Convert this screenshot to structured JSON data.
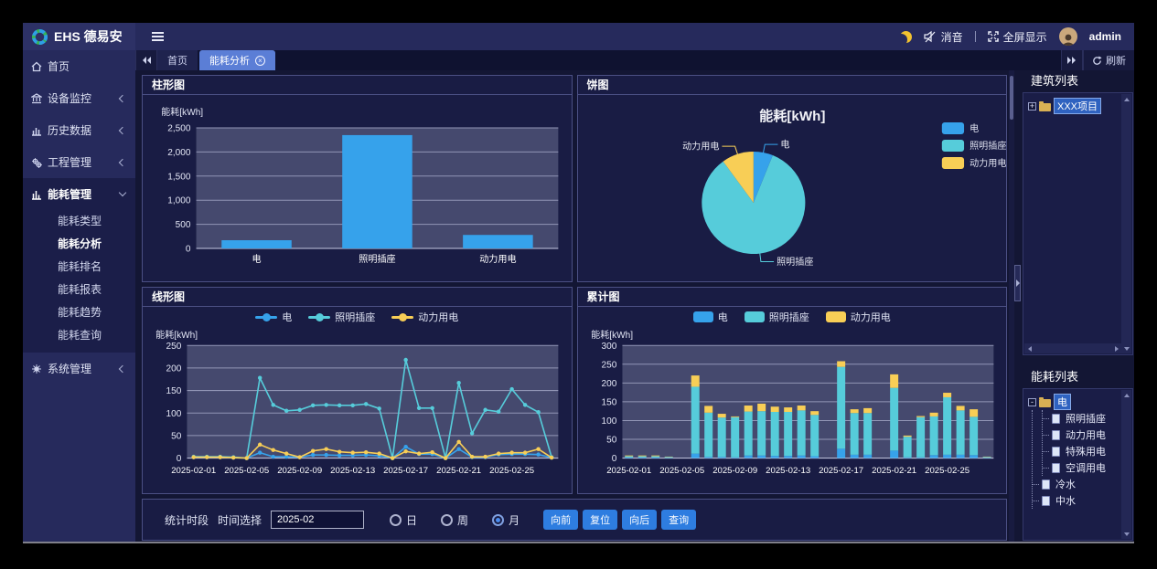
{
  "topbar": {
    "brand": "EHS 德易安",
    "mute_label": "消音",
    "fullscreen_label": "全屏显示",
    "username": "admin"
  },
  "sidebar": {
    "items": [
      {
        "label": "首页",
        "icon": "home-icon",
        "expandable": false
      },
      {
        "label": "设备监控",
        "icon": "device-monitor-icon",
        "expandable": true
      },
      {
        "label": "历史数据",
        "icon": "history-data-icon",
        "expandable": true
      },
      {
        "label": "工程管理",
        "icon": "project-manage-icon",
        "expandable": true
      },
      {
        "label": "能耗管理",
        "icon": "energy-manage-icon",
        "expandable": true,
        "expanded": true
      },
      {
        "label": "系统管理",
        "icon": "system-manage-icon",
        "expandable": true
      }
    ],
    "submenu": [
      "能耗类型",
      "能耗分析",
      "能耗排名",
      "能耗报表",
      "能耗趋势",
      "能耗查询"
    ],
    "active_submenu": "能耗分析"
  },
  "tabs": {
    "items": [
      {
        "label": "首页",
        "active": false
      },
      {
        "label": "能耗分析",
        "active": true,
        "closable": true
      }
    ],
    "refresh_label": "刷新"
  },
  "panels": {
    "bar_title": "柱形图",
    "pie_title": "饼图",
    "line_title": "线形图",
    "stack_title": "累计图"
  },
  "right_panel": {
    "building_title": "建筑列表",
    "building_root": "XXX项目",
    "energy_title": "能耗列表",
    "energy_root": "电",
    "energy_children": [
      "照明插座",
      "动力用电",
      "特殊用电",
      "空调用电"
    ],
    "energy_items": [
      "冷水",
      "中水"
    ]
  },
  "footer": {
    "section_label": "统计时段",
    "time_label": "时间选择",
    "time_value": "2025-02",
    "radios": [
      {
        "label": "日",
        "checked": false
      },
      {
        "label": "周",
        "checked": false
      },
      {
        "label": "月",
        "checked": true
      }
    ],
    "buttons": [
      "向前",
      "复位",
      "向后",
      "查询"
    ]
  },
  "chart_style": {
    "plot_bg": "#45496e",
    "grid": "#9296b6",
    "tick_color": "#e2e5f4",
    "label_color": "#ffffff",
    "title_color": "#f2f3f8"
  },
  "chart_data": [
    {
      "type": "bar",
      "title": "柱形图",
      "axis_name": "能耗[kWh]",
      "categories": [
        "电",
        "照明插座",
        "动力用电"
      ],
      "values": [
        170,
        2350,
        280
      ],
      "ylim": [
        0,
        2500
      ],
      "yticks": [
        0,
        500,
        1000,
        1500,
        2000,
        2500
      ],
      "bar_color": "#36A2EB",
      "legend_position": "none",
      "grid_on": true
    },
    {
      "type": "pie",
      "title": "能耗[kWh]",
      "legend_position": "right",
      "slices": [
        {
          "name": "电",
          "value": 170,
          "color": "#36A2EB"
        },
        {
          "name": "照明插座",
          "value": 2350,
          "color": "#56CCDA"
        },
        {
          "name": "动力用电",
          "value": 280,
          "color": "#F8CE56"
        }
      ]
    },
    {
      "type": "line",
      "title": "线形图",
      "axis_name": "能耗[kWh]",
      "ylim": [
        0,
        250
      ],
      "ytick_step": 50,
      "tick_every": 4,
      "legend_position": "top",
      "grid_on": true,
      "x": [
        "2025-02-01",
        "2025-02-02",
        "2025-02-03",
        "2025-02-04",
        "2025-02-05",
        "2025-02-06",
        "2025-02-07",
        "2025-02-08",
        "2025-02-09",
        "2025-02-10",
        "2025-02-11",
        "2025-02-12",
        "2025-02-13",
        "2025-02-14",
        "2025-02-15",
        "2025-02-16",
        "2025-02-17",
        "2025-02-18",
        "2025-02-19",
        "2025-02-20",
        "2025-02-21",
        "2025-02-22",
        "2025-02-23",
        "2025-02-24",
        "2025-02-25",
        "2025-02-26",
        "2025-02-27",
        "2025-02-28"
      ],
      "series": [
        {
          "name": "电",
          "color": "#36A2EB",
          "values": [
            2,
            2,
            2,
            1,
            0,
            12,
            3,
            3,
            2,
            7,
            7,
            6,
            6,
            7,
            5,
            0,
            25,
            9,
            9,
            0,
            20,
            2,
            2,
            8,
            9,
            9,
            8,
            1
          ]
        },
        {
          "name": "照明插座",
          "color": "#56CCDA",
          "values": [
            3,
            3,
            3,
            2,
            0,
            178,
            118,
            105,
            107,
            117,
            118,
            117,
            117,
            120,
            110,
            0,
            218,
            111,
            111,
            0,
            167,
            55,
            107,
            103,
            153,
            118,
            102,
            2
          ]
        },
        {
          "name": "动力用电",
          "color": "#F8CE56",
          "values": [
            2,
            2,
            2,
            1,
            0,
            30,
            18,
            10,
            2,
            16,
            20,
            14,
            12,
            13,
            10,
            0,
            15,
            10,
            13,
            0,
            36,
            3,
            3,
            10,
            12,
            12,
            20,
            1
          ]
        }
      ]
    },
    {
      "type": "stacked_bar",
      "title": "累计图",
      "axis_name": "能耗[kWh]",
      "ylim": [
        0,
        300
      ],
      "ytick_step": 50,
      "tick_every": 4,
      "legend_position": "top",
      "grid_on": true,
      "x": [
        "2025-02-01",
        "2025-02-02",
        "2025-02-03",
        "2025-02-04",
        "2025-02-05",
        "2025-02-06",
        "2025-02-07",
        "2025-02-08",
        "2025-02-09",
        "2025-02-10",
        "2025-02-11",
        "2025-02-12",
        "2025-02-13",
        "2025-02-14",
        "2025-02-15",
        "2025-02-16",
        "2025-02-17",
        "2025-02-18",
        "2025-02-19",
        "2025-02-20",
        "2025-02-21",
        "2025-02-22",
        "2025-02-23",
        "2025-02-24",
        "2025-02-25",
        "2025-02-26",
        "2025-02-27",
        "2025-02-28"
      ],
      "series": [
        {
          "name": "电",
          "color": "#36A2EB",
          "values": [
            2,
            2,
            2,
            1,
            0,
            12,
            3,
            3,
            2,
            7,
            7,
            6,
            6,
            7,
            5,
            0,
            25,
            9,
            9,
            0,
            20,
            2,
            2,
            8,
            9,
            9,
            8,
            1
          ]
        },
        {
          "name": "照明插座",
          "color": "#56CCDA",
          "values": [
            3,
            3,
            3,
            2,
            0,
            178,
            118,
            105,
            107,
            117,
            118,
            117,
            117,
            120,
            110,
            0,
            218,
            111,
            111,
            0,
            167,
            55,
            107,
            103,
            153,
            118,
            102,
            2
          ]
        },
        {
          "name": "动力用电",
          "color": "#F8CE56",
          "values": [
            2,
            2,
            2,
            1,
            0,
            30,
            18,
            10,
            2,
            16,
            20,
            14,
            12,
            13,
            10,
            0,
            15,
            10,
            13,
            0,
            36,
            3,
            3,
            10,
            12,
            12,
            20,
            1
          ]
        }
      ]
    }
  ]
}
